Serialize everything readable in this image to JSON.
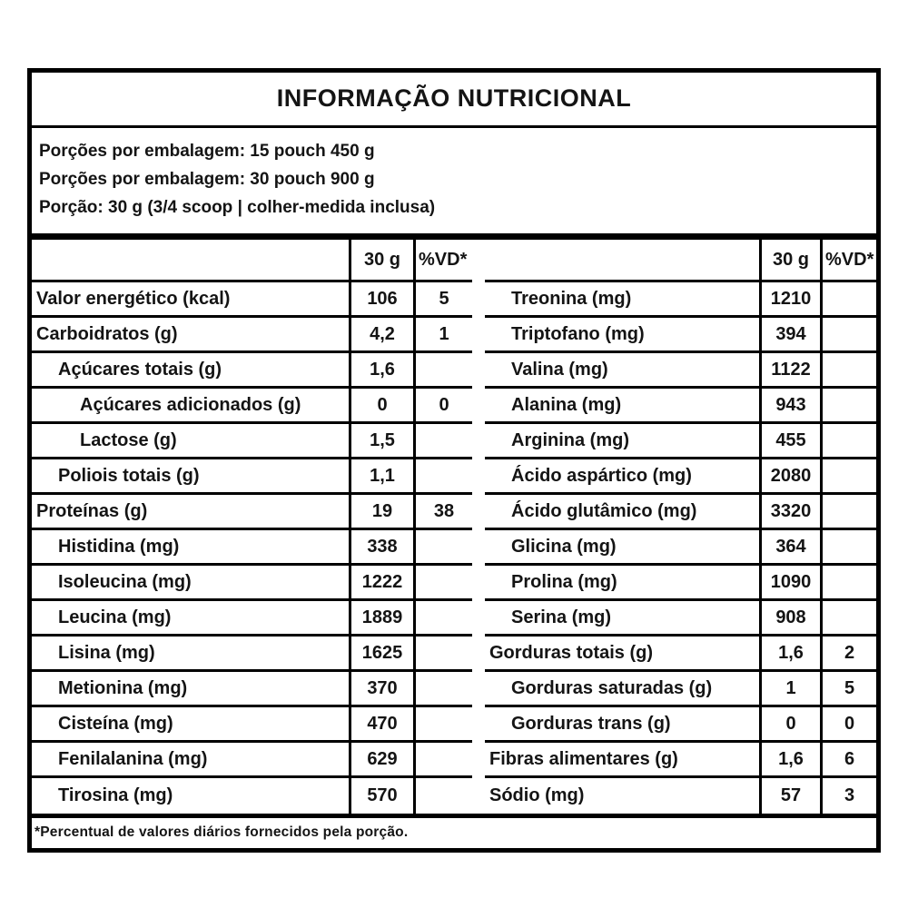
{
  "label": {
    "title": "INFORMAÇÃO NUTRICIONAL",
    "serving_info": [
      "Porções por embalagem: 15 pouch 450 g",
      "Porções por embalagem: 30 pouch 900 g",
      "Porção: 30 g (3/4 scoop | colher-medida inclusa)"
    ],
    "column_headers": {
      "amount": "30 g",
      "dv": "%VD*"
    },
    "footnote": "*Percentual de valores diários fornecidos pela porção.",
    "colors": {
      "border": "#000000",
      "text": "#141414",
      "background": "#ffffff"
    },
    "tables": {
      "left": {
        "rows": [
          {
            "name": "Valor energético (kcal)",
            "amount": "106",
            "dv": "5",
            "indent": 0
          },
          {
            "name": "Carboidratos (g)",
            "amount": "4,2",
            "dv": "1",
            "indent": 0
          },
          {
            "name": "Açúcares totais (g)",
            "amount": "1,6",
            "dv": "",
            "indent": 1
          },
          {
            "name": "Açúcares adicionados (g)",
            "amount": "0",
            "dv": "0",
            "indent": 2
          },
          {
            "name": "Lactose (g)",
            "amount": "1,5",
            "dv": "",
            "indent": 2
          },
          {
            "name": "Poliois totais (g)",
            "amount": "1,1",
            "dv": "",
            "indent": 1
          },
          {
            "name": "Proteínas (g)",
            "amount": "19",
            "dv": "38",
            "indent": 0
          },
          {
            "name": "Histidina (mg)",
            "amount": "338",
            "dv": "",
            "indent": 1
          },
          {
            "name": "Isoleucina (mg)",
            "amount": "1222",
            "dv": "",
            "indent": 1
          },
          {
            "name": "Leucina (mg)",
            "amount": "1889",
            "dv": "",
            "indent": 1
          },
          {
            "name": "Lisina (mg)",
            "amount": "1625",
            "dv": "",
            "indent": 1
          },
          {
            "name": "Metionina (mg)",
            "amount": "370",
            "dv": "",
            "indent": 1
          },
          {
            "name": "Cisteína (mg)",
            "amount": "470",
            "dv": "",
            "indent": 1
          },
          {
            "name": "Fenilalanina (mg)",
            "amount": "629",
            "dv": "",
            "indent": 1
          },
          {
            "name": "Tirosina (mg)",
            "amount": "570",
            "dv": "",
            "indent": 1
          }
        ]
      },
      "right": {
        "rows": [
          {
            "name": "Treonina (mg)",
            "amount": "1210",
            "dv": "",
            "indent": 1
          },
          {
            "name": "Triptofano (mg)",
            "amount": "394",
            "dv": "",
            "indent": 1
          },
          {
            "name": "Valina (mg)",
            "amount": "1122",
            "dv": "",
            "indent": 1
          },
          {
            "name": "Alanina (mg)",
            "amount": "943",
            "dv": "",
            "indent": 1
          },
          {
            "name": "Arginina (mg)",
            "amount": "455",
            "dv": "",
            "indent": 1
          },
          {
            "name": "Ácido aspártico (mg)",
            "amount": "2080",
            "dv": "",
            "indent": 1
          },
          {
            "name": "Ácido glutâmico (mg)",
            "amount": "3320",
            "dv": "",
            "indent": 1
          },
          {
            "name": "Glicina (mg)",
            "amount": "364",
            "dv": "",
            "indent": 1
          },
          {
            "name": "Prolina (mg)",
            "amount": "1090",
            "dv": "",
            "indent": 1
          },
          {
            "name": "Serina (mg)",
            "amount": "908",
            "dv": "",
            "indent": 1
          },
          {
            "name": "Gorduras totais (g)",
            "amount": "1,6",
            "dv": "2",
            "indent": 0
          },
          {
            "name": "Gorduras saturadas (g)",
            "amount": "1",
            "dv": "5",
            "indent": 1
          },
          {
            "name": "Gorduras trans (g)",
            "amount": "0",
            "dv": "0",
            "indent": 1
          },
          {
            "name": "Fibras alimentares (g)",
            "amount": "1,6",
            "dv": "6",
            "indent": 0
          },
          {
            "name": "Sódio (mg)",
            "amount": "57",
            "dv": "3",
            "indent": 0
          }
        ]
      }
    }
  }
}
